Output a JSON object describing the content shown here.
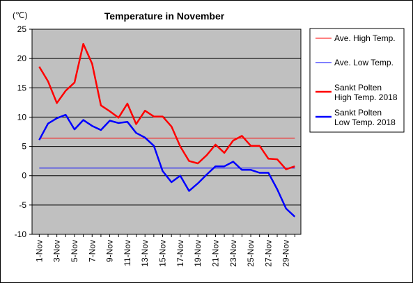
{
  "chart_data": {
    "type": "line",
    "title": "Temperature in November",
    "unit_label": "(℃)",
    "ylim": [
      -10,
      25
    ],
    "y_ticks": [
      25,
      20,
      15,
      10,
      5,
      0,
      -5,
      -10
    ],
    "x_tick_labels": [
      "1-Nov",
      "3-Nov",
      "5-Nov",
      "7-Nov",
      "9-Nov",
      "11-Nov",
      "13-Nov",
      "15-Nov",
      "17-Nov",
      "19-Nov",
      "21-Nov",
      "23-Nov",
      "25-Nov",
      "27-Nov",
      "29-Nov"
    ],
    "days": [
      1,
      2,
      3,
      4,
      5,
      6,
      7,
      8,
      9,
      10,
      11,
      12,
      13,
      14,
      15,
      16,
      17,
      18,
      19,
      20,
      21,
      22,
      23,
      24,
      25,
      26,
      27,
      28,
      29,
      30
    ],
    "grid": true,
    "legend_position": "right",
    "colors": {
      "plot_bg": "#c0c0c0",
      "high": "#ff0000",
      "low": "#0000ff"
    },
    "series": [
      {
        "name": "Ave. High Temp.",
        "legend_lines": [
          "Ave. High Temp."
        ],
        "kind": "average",
        "color": "#ff0000",
        "value": 6.4
      },
      {
        "name": "Ave. Low Temp.",
        "legend_lines": [
          "Ave. Low Temp."
        ],
        "kind": "average",
        "color": "#0000ff",
        "value": 1.3
      },
      {
        "name": "Sankt Polten High Temp. 2018",
        "legend_lines": [
          "Sankt Polten",
          "High Temp. 2018"
        ],
        "kind": "daily",
        "color": "#ff0000",
        "values": [
          18.6,
          16.1,
          12.4,
          14.5,
          15.9,
          22.5,
          19.1,
          12.0,
          11.0,
          9.9,
          12.3,
          8.8,
          11.1,
          10.1,
          10.1,
          8.4,
          5.0,
          2.5,
          2.1,
          3.5,
          5.3,
          3.9,
          6.0,
          6.8,
          5.1,
          5.1,
          2.9,
          2.8,
          1.1,
          1.6
        ]
      },
      {
        "name": "Sankt Polten Low Temp. 2018",
        "legend_lines": [
          "Sankt Polten",
          "Low Temp. 2018"
        ],
        "kind": "daily",
        "color": "#0000ff",
        "values": [
          6.1,
          8.9,
          9.8,
          10.4,
          7.9,
          9.5,
          8.5,
          7.8,
          9.4,
          9.0,
          9.2,
          7.3,
          6.5,
          5.1,
          0.8,
          -1.1,
          0.0,
          -2.6,
          -1.3,
          0.2,
          1.6,
          1.6,
          2.4,
          1.0,
          1.0,
          0.5,
          0.5,
          -2.3,
          -5.6,
          -7.0
        ]
      }
    ]
  }
}
